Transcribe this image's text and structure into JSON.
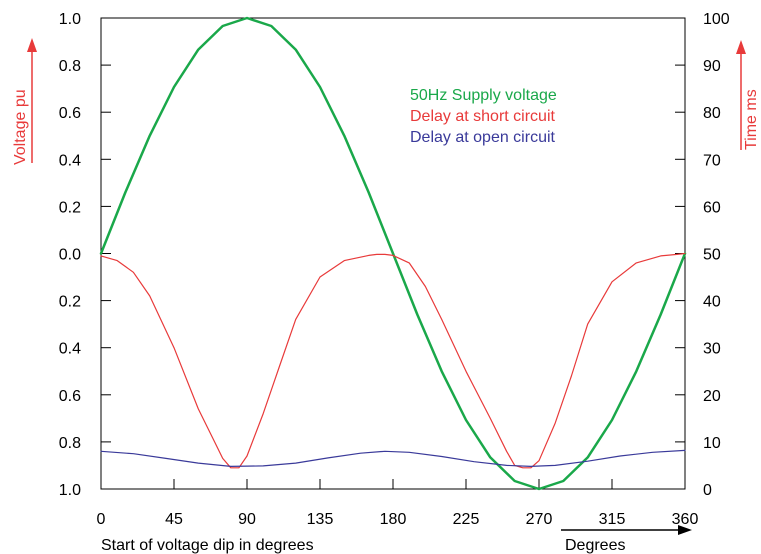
{
  "chart_data": {
    "type": "line",
    "xlabel": "Start of voltage dip in degrees",
    "xlabel_right": "Degrees",
    "ylabel_left": "Voltage pu",
    "ylabel_right": "Time ms",
    "xlim": [
      0,
      360
    ],
    "ylim_left": [
      -1.0,
      1.0
    ],
    "ylim_right": [
      0,
      100
    ],
    "x_ticks": [
      0,
      45,
      90,
      135,
      180,
      225,
      270,
      315,
      360
    ],
    "x_tick_labels": [
      "0",
      "45",
      "90",
      "135",
      "180",
      "225",
      "270",
      "315",
      "360"
    ],
    "y_left_tick_labels": [
      "1.0",
      "0.8",
      "0.6",
      "0.4",
      "0.2",
      "0.0",
      "0.2",
      "0.4",
      "0.6",
      "0.8",
      "1.0"
    ],
    "y_right_ticks": [
      100,
      90,
      80,
      70,
      60,
      50,
      40,
      30,
      20,
      10,
      0
    ],
    "y_right_tick_labels": [
      "100",
      "90",
      "80",
      "70",
      "60",
      "50",
      "40",
      "30",
      "20",
      "10",
      "0"
    ],
    "grid": false,
    "legend_position": "top-right (inside plot)",
    "series": [
      {
        "name": "50Hz Supply voltage",
        "color": "#1aa84a",
        "axis": "left",
        "x": [
          0,
          15,
          30,
          45,
          60,
          75,
          90,
          105,
          120,
          135,
          150,
          165,
          180,
          195,
          210,
          225,
          240,
          255,
          270,
          285,
          300,
          315,
          330,
          345,
          360
        ],
        "values": [
          0,
          0.259,
          0.5,
          0.707,
          0.866,
          0.966,
          1.0,
          0.966,
          0.866,
          0.707,
          0.5,
          0.259,
          0,
          -0.259,
          -0.5,
          -0.707,
          -0.866,
          -0.966,
          -1.0,
          -0.966,
          -0.866,
          -0.707,
          -0.5,
          -0.259,
          0
        ]
      },
      {
        "name": "Delay at short circuit",
        "color": "#e83a3a",
        "axis": "right",
        "x": [
          0,
          10,
          20,
          30,
          45,
          60,
          70,
          75,
          80,
          85,
          90,
          100,
          110,
          120,
          135,
          150,
          165,
          170,
          175,
          180,
          190,
          200,
          210,
          225,
          240,
          250,
          255,
          260,
          265,
          270,
          280,
          290,
          300,
          315,
          330,
          345,
          355,
          360
        ],
        "values": [
          49.5,
          48.5,
          46,
          41,
          30,
          17,
          10,
          6.5,
          4.5,
          4.5,
          7,
          16,
          26,
          36,
          45,
          48.5,
          49.6,
          49.8,
          49.8,
          49.6,
          48,
          43,
          36,
          25,
          15,
          8,
          5,
          4.5,
          4.5,
          6,
          14,
          24,
          35,
          44,
          48,
          49.5,
          49.8,
          50
        ]
      },
      {
        "name": "Delay at open circuit",
        "color": "#3a3a9a",
        "axis": "right",
        "x": [
          0,
          20,
          40,
          60,
          80,
          100,
          120,
          140,
          160,
          175,
          190,
          210,
          230,
          250,
          265,
          280,
          300,
          320,
          340,
          360
        ],
        "values": [
          8,
          7.5,
          6.5,
          5.5,
          4.8,
          4.9,
          5.5,
          6.6,
          7.6,
          8,
          7.8,
          6.9,
          5.8,
          5,
          4.8,
          5,
          5.9,
          7,
          7.8,
          8.2
        ]
      }
    ]
  }
}
